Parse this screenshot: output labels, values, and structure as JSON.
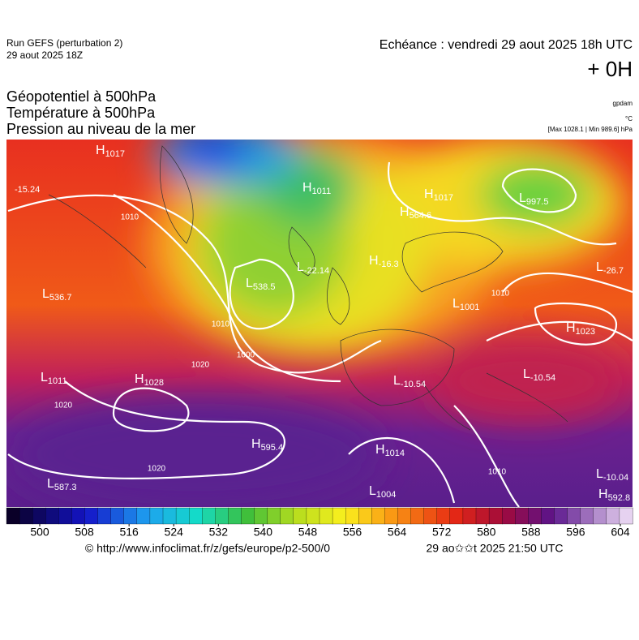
{
  "header": {
    "run": "Run GEFS (perturbation 2)",
    "run_date": "29 aout 2025 18Z",
    "echeance": "Echéance : vendredi 29 aout 2025 18h UTC",
    "offset": "+ 0H",
    "layers": [
      "Géopotentiel à 500hPa",
      "Température à 500hPa",
      "Pression au niveau de la mer"
    ],
    "unit_geopotential": "gpdam",
    "unit_temperature": "°C",
    "pressure_range": "[Max 1028.1 | Min 989.6] hPa"
  },
  "map": {
    "centers": [
      {
        "letter": "H",
        "value": "1017"
      },
      {
        "letter": "",
        "value": "-15.24"
      },
      {
        "letter": "H",
        "value": "1011"
      },
      {
        "letter": "H",
        "value": "1017"
      },
      {
        "letter": "H",
        "value": "564.6"
      },
      {
        "letter": "L",
        "value": "997.5"
      },
      {
        "letter": "L",
        "value": "-22.14"
      },
      {
        "letter": "H",
        "value": "-16.3"
      },
      {
        "letter": "L",
        "value": "538.5"
      },
      {
        "letter": "L",
        "value": "536.7"
      },
      {
        "letter": "L",
        "value": "1001"
      },
      {
        "letter": "L",
        "value": "-26.7"
      },
      {
        "letter": "H",
        "value": "1023"
      },
      {
        "letter": "L",
        "value": "1011"
      },
      {
        "letter": "H",
        "value": "1028"
      },
      {
        "letter": "L",
        "value": "-10.54"
      },
      {
        "letter": "L",
        "value": "-10.54"
      },
      {
        "letter": "H",
        "value": "595.4"
      },
      {
        "letter": "H",
        "value": "1014"
      },
      {
        "letter": "L",
        "value": "587.3"
      },
      {
        "letter": "L",
        "value": "1004"
      },
      {
        "letter": "L",
        "value": "-10.04"
      },
      {
        "letter": "H",
        "value": "592.8"
      }
    ],
    "isobar_labels": [
      "1010",
      "1020",
      "1020",
      "1000",
      "1010",
      "1020",
      "1010",
      "1010"
    ]
  },
  "colorbar": {
    "ticks": [
      500,
      508,
      516,
      524,
      532,
      540,
      548,
      556,
      564,
      572,
      580,
      588,
      596,
      604
    ]
  },
  "footer": {
    "source": "© http://www.infoclimat.fr/z/gefs/europe/p2-500/0",
    "generated": "29 ao✩✩t 2025 21:50 UTC"
  }
}
